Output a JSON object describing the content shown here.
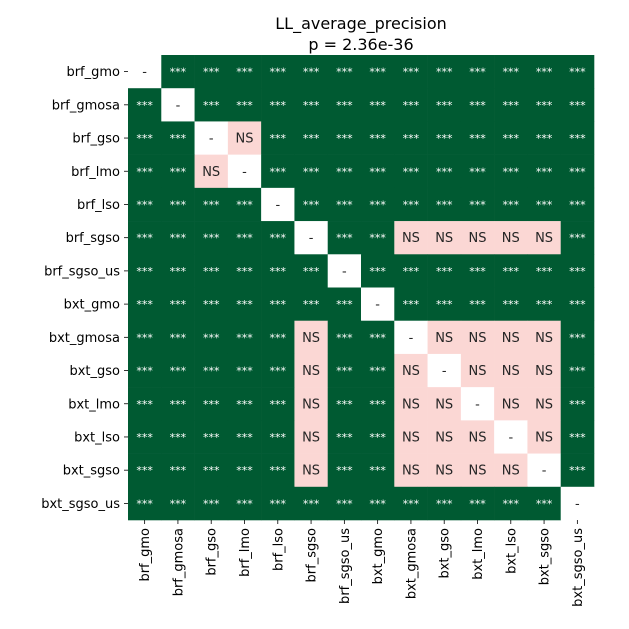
{
  "chart_data": {
    "type": "heatmap",
    "title": "LL_average_precision",
    "subtitle": "p = 2.36e-36",
    "categories": [
      "brf_gmo",
      "brf_gmosa",
      "brf_gso",
      "brf_lmo",
      "brf_lso",
      "brf_sgso",
      "brf_sgso_us",
      "bxt_gmo",
      "bxt_gmosa",
      "bxt_gso",
      "bxt_lmo",
      "bxt_lso",
      "bxt_sgso",
      "bxt_sgso_us"
    ],
    "matrix": [
      [
        "-",
        "***",
        "***",
        "***",
        "***",
        "***",
        "***",
        "***",
        "***",
        "***",
        "***",
        "***",
        "***",
        "***"
      ],
      [
        "***",
        "-",
        "***",
        "***",
        "***",
        "***",
        "***",
        "***",
        "***",
        "***",
        "***",
        "***",
        "***",
        "***"
      ],
      [
        "***",
        "***",
        "-",
        "NS",
        "***",
        "***",
        "***",
        "***",
        "***",
        "***",
        "***",
        "***",
        "***",
        "***"
      ],
      [
        "***",
        "***",
        "NS",
        "-",
        "***",
        "***",
        "***",
        "***",
        "***",
        "***",
        "***",
        "***",
        "***",
        "***"
      ],
      [
        "***",
        "***",
        "***",
        "***",
        "-",
        "***",
        "***",
        "***",
        "***",
        "***",
        "***",
        "***",
        "***",
        "***"
      ],
      [
        "***",
        "***",
        "***",
        "***",
        "***",
        "-",
        "***",
        "***",
        "NS",
        "NS",
        "NS",
        "NS",
        "NS",
        "***"
      ],
      [
        "***",
        "***",
        "***",
        "***",
        "***",
        "***",
        "-",
        "***",
        "***",
        "***",
        "***",
        "***",
        "***",
        "***"
      ],
      [
        "***",
        "***",
        "***",
        "***",
        "***",
        "***",
        "***",
        "-",
        "***",
        "***",
        "***",
        "***",
        "***",
        "***"
      ],
      [
        "***",
        "***",
        "***",
        "***",
        "***",
        "NS",
        "***",
        "***",
        "-",
        "NS",
        "NS",
        "NS",
        "NS",
        "***"
      ],
      [
        "***",
        "***",
        "***",
        "***",
        "***",
        "NS",
        "***",
        "***",
        "NS",
        "-",
        "NS",
        "NS",
        "NS",
        "***"
      ],
      [
        "***",
        "***",
        "***",
        "***",
        "***",
        "NS",
        "***",
        "***",
        "NS",
        "NS",
        "-",
        "NS",
        "NS",
        "***"
      ],
      [
        "***",
        "***",
        "***",
        "***",
        "***",
        "NS",
        "***",
        "***",
        "NS",
        "NS",
        "NS",
        "-",
        "NS",
        "***"
      ],
      [
        "***",
        "***",
        "***",
        "***",
        "***",
        "NS",
        "***",
        "***",
        "NS",
        "NS",
        "NS",
        "NS",
        "-",
        "***"
      ],
      [
        "***",
        "***",
        "***",
        "***",
        "***",
        "***",
        "***",
        "***",
        "***",
        "***",
        "***",
        "***",
        "***",
        "-"
      ]
    ],
    "colors": {
      "significant": "#005a32",
      "not_significant": "#fbd7d4",
      "diagonal": "#ffffff",
      "significant_text": "#ffffff",
      "other_text": "#262626"
    }
  }
}
